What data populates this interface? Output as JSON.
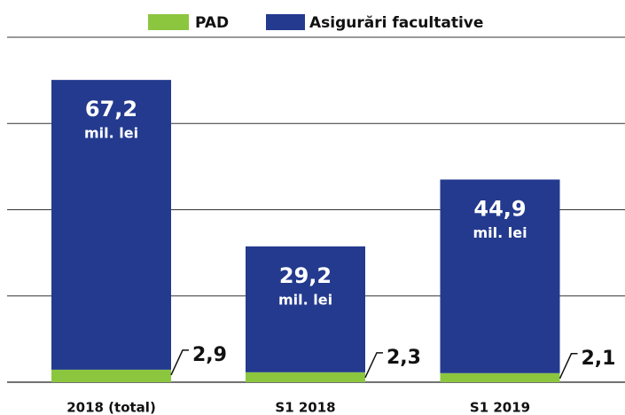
{
  "chart_data": {
    "type": "stacked_bar",
    "categories": [
      "2018 (total)",
      "S1 2018",
      "S1 2019"
    ],
    "series": [
      {
        "name": "PAD",
        "color": "#8cc63f",
        "values": [
          2.9,
          2.3,
          2.1
        ],
        "value_labels": [
          "2,9",
          "2,3",
          "2,1"
        ]
      },
      {
        "name": "Asigurări facultative",
        "color": "#233a8e",
        "values": [
          67.2,
          29.2,
          44.9
        ],
        "value_labels": [
          "67,2",
          "29,2",
          "44,9"
        ]
      }
    ],
    "unit_label": "mil. lei",
    "ylim": [
      0,
      80
    ],
    "yticks": [
      0,
      20,
      40,
      60,
      80
    ],
    "grid": true
  }
}
